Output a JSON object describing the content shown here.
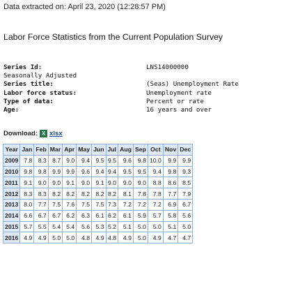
{
  "header": {
    "extracted_text": "Data extracted on: April 23, 2020 (12:28:57 PM)",
    "title": "Labor Force Statistics from the Current Population Survey"
  },
  "series_meta": [
    {
      "label": "Series Id:",
      "value": "LNS14000000",
      "bold": true
    },
    {
      "label": "Seasonally Adjusted",
      "value": "",
      "bold": false
    },
    {
      "label": "Series title:",
      "value": "(Seas) Unemployment Rate",
      "bold": true
    },
    {
      "label": "Labor force status:",
      "value": "Unemployment rate",
      "bold": true
    },
    {
      "label": "Type of data:",
      "value": "Percent or rate",
      "bold": true
    },
    {
      "label": "Age:",
      "value": "16 years and over",
      "bold": true
    }
  ],
  "download": {
    "label": "Download:",
    "icon": "xlsx-file-icon",
    "link_text": "xlsx"
  },
  "table": {
    "columns": [
      "Year",
      "Jan",
      "Feb",
      "Mar",
      "Apr",
      "May",
      "Jun",
      "Jul",
      "Aug",
      "Sep",
      "Oct",
      "Nov",
      "Dec"
    ],
    "rows": [
      [
        "2009",
        "7.8",
        "8.3",
        "8.7",
        "9.0",
        "9.4",
        "9.5",
        "9.5",
        "9.6",
        "9.8",
        "10.0",
        "9.9",
        "9.9"
      ],
      [
        "2010",
        "9.8",
        "9.8",
        "9.9",
        "9.9",
        "9.6",
        "9.4",
        "9.4",
        "9.5",
        "9.5",
        "9.4",
        "9.8",
        "9.3"
      ],
      [
        "2011",
        "9.1",
        "9.0",
        "9.0",
        "9.1",
        "9.0",
        "9.1",
        "9.0",
        "9.0",
        "9.0",
        "8.8",
        "8.6",
        "8.5"
      ],
      [
        "2012",
        "8.3",
        "8.3",
        "8.2",
        "8.2",
        "8.2",
        "8.2",
        "8.2",
        "8.1",
        "7.8",
        "7.8",
        "7.7",
        "7.9"
      ],
      [
        "2013",
        "8.0",
        "7.7",
        "7.5",
        "7.6",
        "7.5",
        "7.5",
        "7.3",
        "7.2",
        "7.2",
        "7.2",
        "6.9",
        "6.7"
      ],
      [
        "2014",
        "6.6",
        "6.7",
        "6.7",
        "6.2",
        "6.3",
        "6.1",
        "6.2",
        "6.1",
        "5.9",
        "5.7",
        "5.8",
        "5.6"
      ],
      [
        "2015",
        "5.7",
        "5.5",
        "5.4",
        "5.4",
        "5.6",
        "5.3",
        "5.2",
        "5.1",
        "5.0",
        "5.0",
        "5.1",
        "5.0"
      ],
      [
        "2016",
        "4.9",
        "4.9",
        "5.0",
        "5.0",
        "4.8",
        "4.9",
        "4.8",
        "4.9",
        "5.0",
        "4.9",
        "4.7",
        "4.7"
      ]
    ]
  },
  "colors": {
    "header_bg": "#dfe9f6",
    "border": "#8fb0d6",
    "link": "#1a4e9a"
  }
}
